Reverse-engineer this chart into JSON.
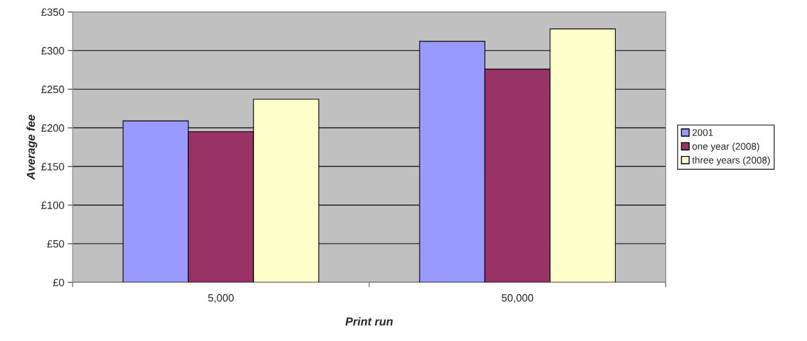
{
  "chart_data": {
    "type": "bar",
    "xlabel": "Print run",
    "ylabel": "Average fee",
    "categories": [
      "5,000",
      "50,000"
    ],
    "series": [
      {
        "name": "2001",
        "color": "#9999ff",
        "values": [
          209,
          312
        ]
      },
      {
        "name": "one year (2008)",
        "color": "#993366",
        "values": [
          195,
          276
        ]
      },
      {
        "name": "three years (2008)",
        "color": "#ffffcc",
        "values": [
          237,
          328
        ]
      }
    ],
    "ylim": [
      0,
      350
    ],
    "yticks": [
      {
        "value": 0,
        "label": "£0"
      },
      {
        "value": 50,
        "label": "£50"
      },
      {
        "value": 100,
        "label": "£100"
      },
      {
        "value": 150,
        "label": "£150"
      },
      {
        "value": 200,
        "label": "£200"
      },
      {
        "value": 250,
        "label": "£250"
      },
      {
        "value": 300,
        "label": "£300"
      },
      {
        "value": 350,
        "label": "£350"
      }
    ],
    "grid": "y",
    "legend": "right"
  }
}
